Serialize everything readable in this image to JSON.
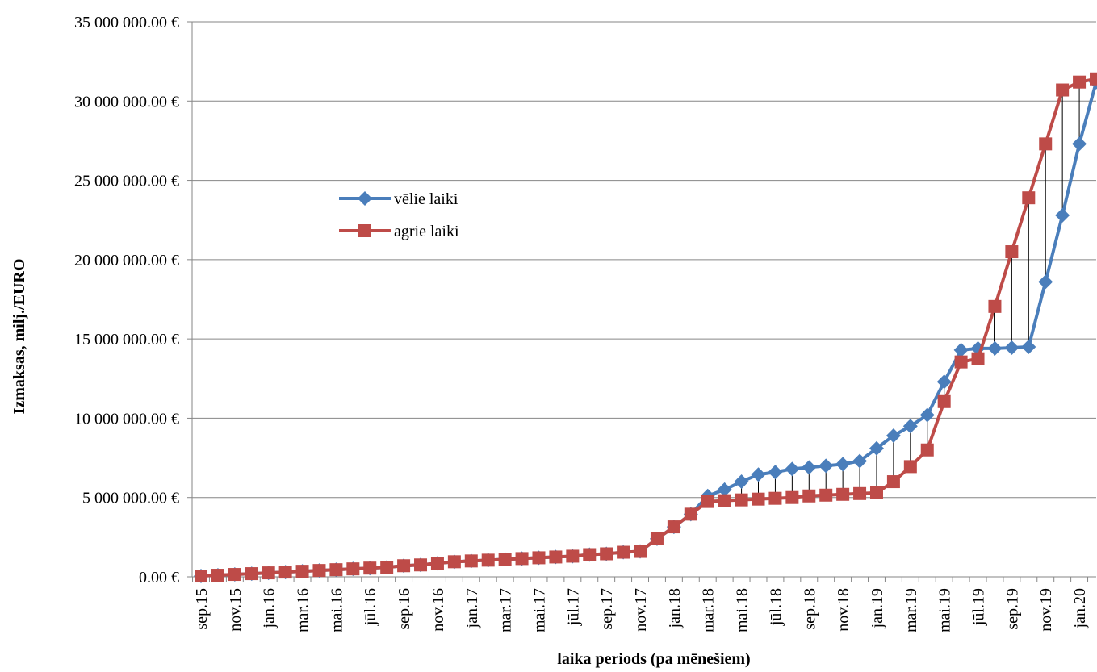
{
  "chart_data": {
    "type": "line",
    "xlabel": "laika periods (pa mēnešiem)",
    "ylabel": "Izmaksas, milj./EURO",
    "ylim": [
      0,
      35000000
    ],
    "y_ticks": [
      {
        "value": 0,
        "label": "0.00 €"
      },
      {
        "value": 5000000,
        "label": "5 000 000.00 €"
      },
      {
        "value": 10000000,
        "label": "10 000 000.00 €"
      },
      {
        "value": 15000000,
        "label": "15 000 000.00 €"
      },
      {
        "value": 20000000,
        "label": "20 000 000.00 €"
      },
      {
        "value": 25000000,
        "label": "25 000 000.00 €"
      },
      {
        "value": 30000000,
        "label": "30 000 000.00 €"
      },
      {
        "value": 35000000,
        "label": "35 000 000.00 €"
      }
    ],
    "grid": true,
    "legend_position": "left-middle",
    "drop_lines": true,
    "x_tick_labels": [
      "sep.15",
      "nov.15",
      "jan.16",
      "mar.16",
      "mai.16",
      "jūl.16",
      "sep.16",
      "nov.16",
      "jan.17",
      "mar.17",
      "mai.17",
      "jūl.17",
      "sep.17",
      "nov.17",
      "jan.18",
      "mar.18",
      "mai.18",
      "jūl.18",
      "sep.18",
      "nov.18",
      "jan.19",
      "mar.19",
      "mai.19",
      "jūl.19",
      "sep.19",
      "nov.19",
      "jan.20"
    ],
    "x": [
      "sep.15",
      "okt.15",
      "nov.15",
      "dec.15",
      "jan.16",
      "feb.16",
      "mar.16",
      "apr.16",
      "mai.16",
      "jūn.16",
      "jūl.16",
      "aug.16",
      "sep.16",
      "okt.16",
      "nov.16",
      "dec.16",
      "jan.17",
      "feb.17",
      "mar.17",
      "apr.17",
      "mai.17",
      "jūn.17",
      "jūl.17",
      "aug.17",
      "sep.17",
      "okt.17",
      "nov.17",
      "dec.17",
      "jan.18",
      "feb.18",
      "mar.18",
      "apr.18",
      "mai.18",
      "jūn.18",
      "jūl.18",
      "aug.18",
      "sep.18",
      "okt.18",
      "nov.18",
      "dec.18",
      "jan.19",
      "feb.19",
      "mar.19",
      "apr.19",
      "mai.19",
      "jūn.19",
      "jūl.19",
      "aug.19",
      "sep.19",
      "okt.19",
      "nov.19",
      "dec.19",
      "jan.20",
      "feb.20"
    ],
    "series": [
      {
        "name": "vēlie laiki",
        "color": "#4a7ebb",
        "marker": "diamond",
        "values": [
          50000,
          100000,
          150000,
          200000,
          250000,
          300000,
          350000,
          400000,
          450000,
          500000,
          550000,
          600000,
          700000,
          750000,
          850000,
          950000,
          1000000,
          1050000,
          1100000,
          1150000,
          1200000,
          1250000,
          1300000,
          1400000,
          1450000,
          1550000,
          1600000,
          2400000,
          3150000,
          3950000,
          5100000,
          5500000,
          6000000,
          6450000,
          6600000,
          6800000,
          6900000,
          7000000,
          7100000,
          7300000,
          8100000,
          8900000,
          9500000,
          10200000,
          12300000,
          14300000,
          14400000,
          14400000,
          14450000,
          14500000,
          18600000,
          22800000,
          27300000,
          31200000
        ]
      },
      {
        "name": "agrie laiki",
        "color": "#be4b48",
        "marker": "square",
        "values": [
          50000,
          100000,
          150000,
          200000,
          250000,
          300000,
          350000,
          400000,
          450000,
          500000,
          550000,
          600000,
          700000,
          750000,
          850000,
          950000,
          1000000,
          1050000,
          1100000,
          1150000,
          1200000,
          1250000,
          1300000,
          1400000,
          1450000,
          1550000,
          1600000,
          2400000,
          3150000,
          3950000,
          4750000,
          4800000,
          4850000,
          4900000,
          4950000,
          5000000,
          5100000,
          5150000,
          5200000,
          5250000,
          5300000,
          6000000,
          6950000,
          8000000,
          11050000,
          13550000,
          13750000,
          17050000,
          20500000,
          23900000,
          27300000,
          30700000,
          31200000,
          31400000
        ]
      }
    ]
  }
}
